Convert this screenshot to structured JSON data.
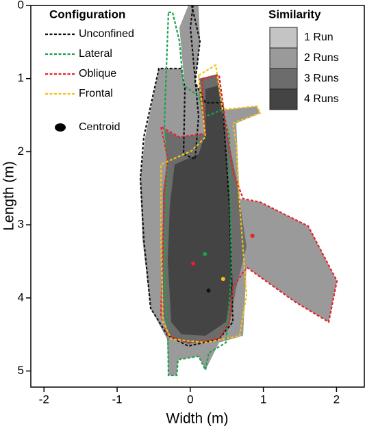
{
  "chart_data": {
    "type": "scatter",
    "xlabel": "Width (m)",
    "ylabel": "Length (m)",
    "xlim": [
      -2.18,
      2.38
    ],
    "ylim": [
      0,
      5.22
    ],
    "xticks": [
      -2,
      -1,
      0,
      1,
      2
    ],
    "yticks": [
      0,
      1,
      2,
      3,
      4,
      5
    ],
    "y_inverted": true,
    "legend_title": "Configuration",
    "centroid_label": "Centroid",
    "series": [
      {
        "name": "Unconfined",
        "color": "#111111",
        "x": [
          0.25
        ],
        "values": [
          3.9
        ]
      },
      {
        "name": "Lateral",
        "color": "#1aa34a",
        "x": [
          0.2
        ],
        "values": [
          3.4
        ]
      },
      {
        "name": "Oblique",
        "color": "#e8202a",
        "x": [
          0.04,
          0.85
        ],
        "values": [
          3.53,
          3.15
        ]
      },
      {
        "name": "Frontal",
        "color": "#f2c318",
        "x": [
          0.45
        ],
        "values": [
          3.74
        ]
      }
    ],
    "similarity_title": "Similarity",
    "similarity_levels": [
      {
        "label": "1 Run",
        "color": "#c4c4c4"
      },
      {
        "label": "2 Runs",
        "color": "#9a9a9a"
      },
      {
        "label": "3 Runs",
        "color": "#6c6c6c"
      },
      {
        "label": "4 Runs",
        "color": "#444444"
      }
    ]
  }
}
